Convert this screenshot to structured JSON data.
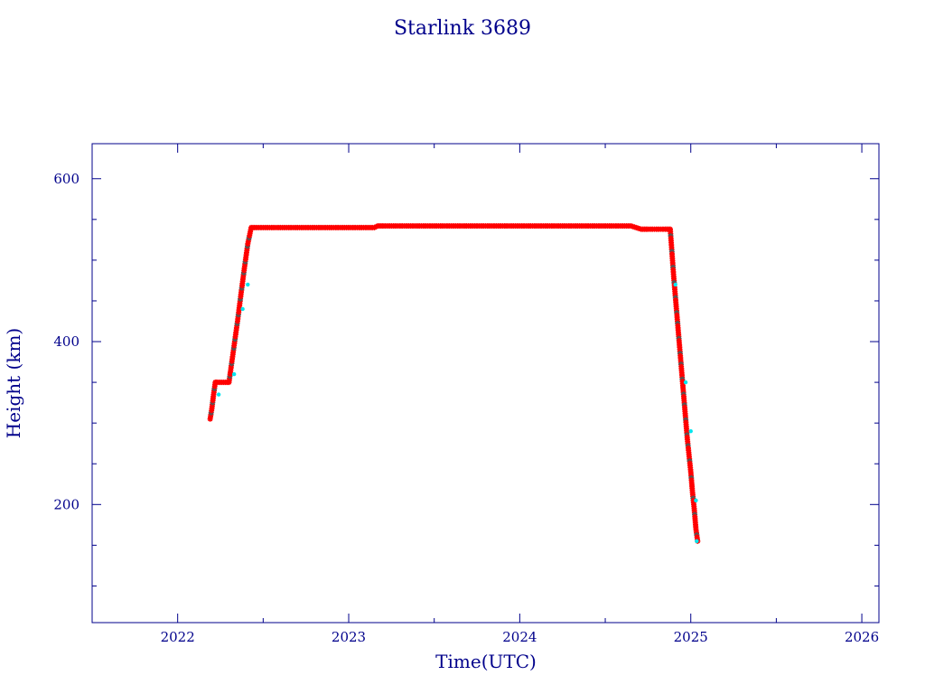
{
  "chart_data": {
    "type": "scatter",
    "title": "Starlink 3689",
    "xlabel": "Time(UTC)",
    "ylabel": "Height (km)",
    "xlim": [
      2021.5,
      2026.1
    ],
    "ylim": [
      55,
      643
    ],
    "x_ticks": [
      2022,
      2023,
      2024,
      2025,
      2026
    ],
    "y_ticks": [
      200,
      400,
      600
    ],
    "x_tick_labels": [
      "2022",
      "2023",
      "2024",
      "2025",
      "2026"
    ],
    "y_tick_labels": [
      "200",
      "400",
      "600"
    ],
    "grid": false,
    "legend": "none",
    "series": [
      {
        "marker": "star",
        "x": [
          2022.19,
          2022.2,
          2022.21,
          2022.22,
          2022.23,
          2022.25,
          2022.28,
          2022.3,
          2022.31,
          2022.33,
          2022.35,
          2022.37,
          2022.39,
          2022.41,
          2022.43,
          2022.45,
          2022.5,
          2022.6,
          2022.7,
          2022.8,
          2022.9,
          2023.0,
          2023.1,
          2023.15,
          2023.17,
          2023.2,
          2023.3,
          2023.4,
          2023.5,
          2023.6,
          2023.7,
          2023.8,
          2023.9,
          2024.0,
          2024.1,
          2024.2,
          2024.3,
          2024.4,
          2024.5,
          2024.6,
          2024.65,
          2024.68,
          2024.71,
          2024.75,
          2024.8,
          2024.85,
          2024.88,
          2024.9,
          2024.92,
          2024.94,
          2024.96,
          2024.98,
          2025.0,
          2025.01,
          2025.02,
          2025.03,
          2025.04
        ],
        "y": [
          305,
          318,
          335,
          350,
          350,
          350,
          350,
          350,
          365,
          395,
          425,
          458,
          490,
          520,
          540,
          540,
          540,
          540,
          540,
          540,
          540,
          540,
          540,
          540,
          542,
          542,
          542,
          542,
          542,
          542,
          542,
          542,
          542,
          542,
          542,
          542,
          542,
          542,
          542,
          542,
          542,
          540,
          538,
          538,
          538,
          538,
          538,
          480,
          430,
          380,
          330,
          280,
          240,
          215,
          195,
          170,
          155
        ]
      },
      {
        "marker": "cyan-dot",
        "x": [
          2022.24,
          2022.33,
          2022.38,
          2022.41,
          2024.91,
          2024.97,
          2025.0,
          2025.03,
          2025.035
        ],
        "y": [
          335,
          360,
          440,
          470,
          470,
          350,
          290,
          205,
          155
        ]
      }
    ],
    "colors": {
      "axis": "#00008b",
      "text": "#00008b",
      "marker_primary": "#ff0000",
      "marker_secondary": "#00e5ee",
      "marker_dark": "#555555"
    }
  }
}
